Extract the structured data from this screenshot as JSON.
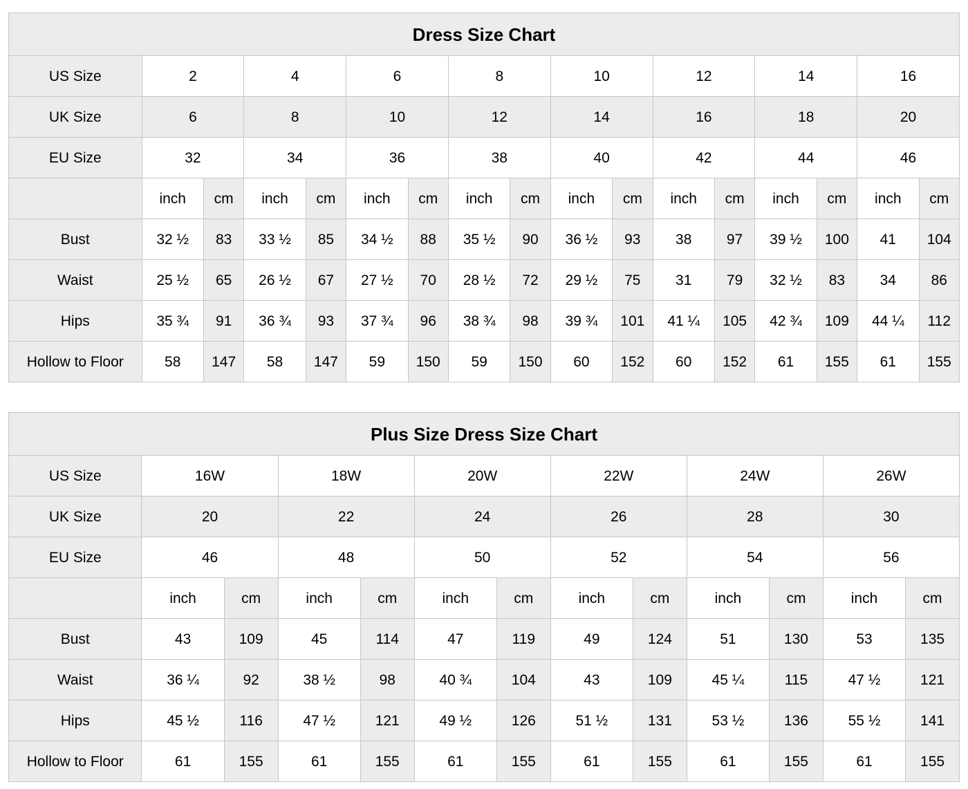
{
  "colors": {
    "cell_shaded": "#ececec",
    "border": "#c6c6c6",
    "text": "#000000",
    "background": "#ffffff"
  },
  "tables": [
    {
      "name": "dress-size-chart",
      "title": "Dress Size Chart",
      "size_rows": [
        {
          "label": "US Size",
          "shaded": false,
          "values": [
            "2",
            "4",
            "6",
            "8",
            "10",
            "12",
            "14",
            "16"
          ]
        },
        {
          "label": "UK Size",
          "shaded": true,
          "values": [
            "6",
            "8",
            "10",
            "12",
            "14",
            "16",
            "18",
            "20"
          ]
        },
        {
          "label": "EU Size",
          "shaded": false,
          "values": [
            "32",
            "34",
            "36",
            "38",
            "40",
            "42",
            "44",
            "46"
          ]
        }
      ],
      "unit_header": {
        "label": "",
        "units": [
          "inch",
          "cm"
        ]
      },
      "measurement_rows": [
        {
          "label": "Bust",
          "inch": [
            "32 ½",
            "33 ½",
            "34 ½",
            "35 ½",
            "36 ½",
            "38",
            "39 ½",
            "41"
          ],
          "cm": [
            "83",
            "85",
            "88",
            "90",
            "93",
            "97",
            "100",
            "104"
          ]
        },
        {
          "label": "Waist",
          "inch": [
            "25 ½",
            "26 ½",
            "27 ½",
            "28 ½",
            "29 ½",
            "31",
            "32 ½",
            "34"
          ],
          "cm": [
            "65",
            "67",
            "70",
            "72",
            "75",
            "79",
            "83",
            "86"
          ]
        },
        {
          "label": "Hips",
          "inch": [
            "35 ¾",
            "36 ¾",
            "37 ¾",
            "38 ¾",
            "39 ¾",
            "41 ¼",
            "42 ¾",
            "44 ¼"
          ],
          "cm": [
            "91",
            "93",
            "96",
            "98",
            "101",
            "105",
            "109",
            "112"
          ]
        },
        {
          "label": "Hollow to Floor",
          "inch": [
            "58",
            "58",
            "59",
            "59",
            "60",
            "60",
            "61",
            "61"
          ],
          "cm": [
            "147",
            "147",
            "150",
            "150",
            "152",
            "152",
            "155",
            "155"
          ]
        }
      ]
    },
    {
      "name": "plus-size-dress-size-chart",
      "title": "Plus Size Dress Size Chart",
      "size_rows": [
        {
          "label": "US Size",
          "shaded": false,
          "values": [
            "16W",
            "18W",
            "20W",
            "22W",
            "24W",
            "26W"
          ]
        },
        {
          "label": "UK Size",
          "shaded": true,
          "values": [
            "20",
            "22",
            "24",
            "26",
            "28",
            "30"
          ]
        },
        {
          "label": "EU Size",
          "shaded": false,
          "values": [
            "46",
            "48",
            "50",
            "52",
            "54",
            "56"
          ]
        }
      ],
      "unit_header": {
        "label": "",
        "units": [
          "inch",
          "cm"
        ]
      },
      "measurement_rows": [
        {
          "label": "Bust",
          "inch": [
            "43",
            "45",
            "47",
            "49",
            "51",
            "53"
          ],
          "cm": [
            "109",
            "114",
            "119",
            "124",
            "130",
            "135"
          ]
        },
        {
          "label": "Waist",
          "inch": [
            "36 ¼",
            "38 ½",
            "40 ¾",
            "43",
            "45 ¼",
            "47 ½"
          ],
          "cm": [
            "92",
            "98",
            "104",
            "109",
            "115",
            "121"
          ]
        },
        {
          "label": "Hips",
          "inch": [
            "45 ½",
            "47 ½",
            "49 ½",
            "51 ½",
            "53 ½",
            "55 ½"
          ],
          "cm": [
            "116",
            "121",
            "126",
            "131",
            "136",
            "141"
          ]
        },
        {
          "label": "Hollow to Floor",
          "inch": [
            "61",
            "61",
            "61",
            "61",
            "61",
            "61"
          ],
          "cm": [
            "155",
            "155",
            "155",
            "155",
            "155",
            "155"
          ]
        }
      ]
    }
  ]
}
